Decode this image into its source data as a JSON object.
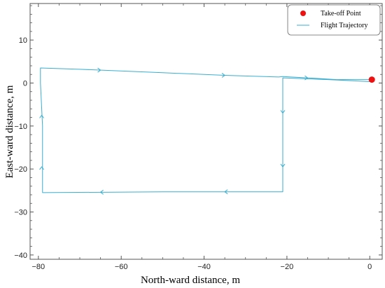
{
  "chart_data": {
    "type": "line",
    "title": "",
    "xlabel": "North-ward distance, m",
    "ylabel": "East-ward distance, m",
    "xlim": [
      -82,
      3
    ],
    "ylim": [
      -41,
      18.5
    ],
    "xticks": [
      -80,
      -60,
      -40,
      -20,
      0
    ],
    "yticks": [
      10,
      0,
      -10,
      -20,
      -30,
      -40
    ],
    "xtick_labels": [
      "−80",
      "−60",
      "−40",
      "−20",
      "0"
    ],
    "ytick_labels": [
      "10",
      "0",
      "−10",
      "−20",
      "−30",
      "−40"
    ],
    "grid": false,
    "legend_position": "top-right",
    "colors": {
      "trajectory": "#3aaed0",
      "takeoff": "#ee1111",
      "frame": "#555555"
    },
    "series": [
      {
        "name": "Flight Trajectory",
        "kind": "line",
        "x": [
          0.5,
          -10,
          -21,
          -21,
          -21,
          -30,
          -50,
          -79,
          -79,
          -79.5,
          -79.5,
          -70,
          -50,
          -35,
          -22,
          -21,
          -15,
          -8,
          0.5
        ],
        "y": [
          0.3,
          0.8,
          1.2,
          -10,
          -25.3,
          -25.3,
          -25.3,
          -25.5,
          -10,
          0,
          3.5,
          3.2,
          2.4,
          1.8,
          1.4,
          1.5,
          1.2,
          0.8,
          0.8
        ]
      },
      {
        "name": "Take-off Point",
        "kind": "point",
        "x": [
          0.5
        ],
        "y": [
          0.8
        ]
      }
    ],
    "arrows": [
      {
        "x": -65,
        "y": 3,
        "dir": "right"
      },
      {
        "x": -35,
        "y": 1.8,
        "dir": "right"
      },
      {
        "x": -15,
        "y": 1.2,
        "dir": "right"
      },
      {
        "x": -21,
        "y": -7,
        "dir": "down"
      },
      {
        "x": -21,
        "y": -19.5,
        "dir": "down"
      },
      {
        "x": -35,
        "y": -25.3,
        "dir": "left"
      },
      {
        "x": -65,
        "y": -25.4,
        "dir": "left"
      },
      {
        "x": -79.2,
        "y": -19.5,
        "dir": "up"
      },
      {
        "x": -79.2,
        "y": -7.5,
        "dir": "up"
      }
    ]
  }
}
